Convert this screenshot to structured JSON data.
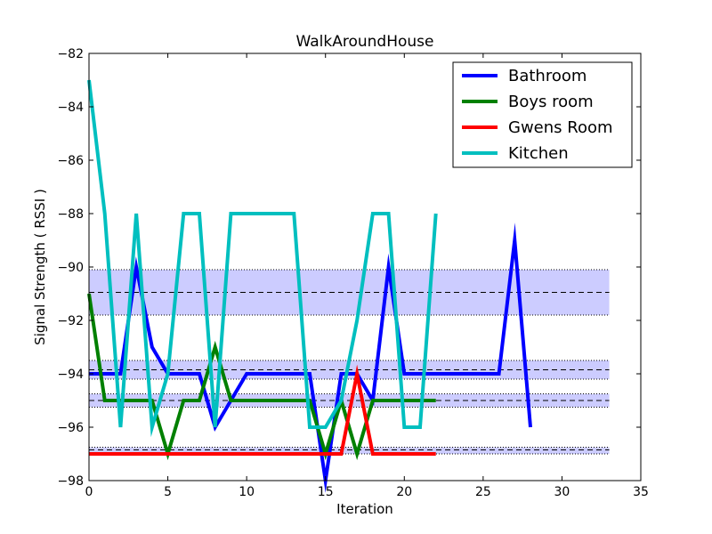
{
  "chart_data": {
    "type": "line",
    "title": "WalkAroundHouse",
    "xlabel": "Iteration",
    "ylabel": "Signal Strength  ( RSSI )",
    "xlim": [
      0,
      35
    ],
    "ylim": [
      -98,
      -82
    ],
    "x_ticks": [
      0,
      5,
      10,
      15,
      20,
      25,
      30,
      35
    ],
    "y_ticks": [
      -98,
      -96,
      -94,
      -92,
      -90,
      -88,
      -86,
      -84,
      -82
    ],
    "grid": false,
    "legend_position": "top-right",
    "bands": [
      {
        "mean": -90.95,
        "low": -91.8,
        "high": -90.1,
        "x_end": 33,
        "color": "#ccccff"
      },
      {
        "mean": -93.85,
        "low": -94.2,
        "high": -93.5,
        "x_end": 33,
        "color": "#ccccff"
      },
      {
        "mean": -95.0,
        "low": -95.25,
        "high": -94.75,
        "x_end": 33,
        "color": "#ccccff"
      },
      {
        "mean": -96.85,
        "low": -97.0,
        "high": -96.75,
        "x_end": 33,
        "color": "#ccccff"
      }
    ],
    "series": [
      {
        "name": "Bathroom",
        "color": "#0000ff",
        "x": [
          0,
          1,
          2,
          3,
          4,
          5,
          6,
          7,
          8,
          9,
          10,
          11,
          12,
          13,
          14,
          15,
          16,
          17,
          18,
          19,
          20,
          21,
          22,
          23,
          24,
          25,
          26,
          27,
          28
        ],
        "values": [
          -94,
          -94,
          -94,
          -90,
          -93,
          -94,
          -94,
          -94,
          -96,
          -95,
          -94,
          -94,
          -94,
          -94,
          -94,
          -98,
          -94,
          -94,
          -95,
          -90,
          -94,
          -94,
          -94,
          -94,
          -94,
          -94,
          -94,
          -89,
          -96
        ]
      },
      {
        "name": "Boys room",
        "color": "#008000",
        "x": [
          0,
          1,
          2,
          3,
          4,
          5,
          6,
          7,
          8,
          9,
          10,
          11,
          12,
          13,
          14,
          15,
          16,
          17,
          18,
          19,
          20,
          21,
          22
        ],
        "values": [
          -91,
          -95,
          -95,
          -95,
          -95,
          -97,
          -95,
          -95,
          -93,
          -95,
          -95,
          -95,
          -95,
          -95,
          -95,
          -97,
          -95,
          -97,
          -95,
          -95,
          -95,
          -95,
          -95
        ]
      },
      {
        "name": "Gwens Room",
        "color": "#ff0000",
        "x": [
          0,
          1,
          2,
          3,
          4,
          5,
          6,
          7,
          8,
          9,
          10,
          11,
          12,
          13,
          14,
          15,
          16,
          17,
          18,
          19,
          20,
          21,
          22
        ],
        "values": [
          -97,
          -97,
          -97,
          -97,
          -97,
          -97,
          -97,
          -97,
          -97,
          -97,
          -97,
          -97,
          -97,
          -97,
          -97,
          -97,
          -97,
          -94,
          -97,
          -97,
          -97,
          -97,
          -97
        ]
      },
      {
        "name": "Kitchen",
        "color": "#00bfbf",
        "x": [
          0,
          1,
          2,
          3,
          4,
          5,
          6,
          7,
          8,
          9,
          10,
          11,
          12,
          13,
          14,
          15,
          16,
          17,
          18,
          19,
          20,
          21,
          22
        ],
        "values": [
          -83,
          -88,
          -96,
          -88,
          -96,
          -94,
          -88,
          -88,
          -96,
          -88,
          -88,
          -88,
          -88,
          -88,
          -96,
          -96,
          -95,
          -92,
          -88,
          -88,
          -96,
          -96,
          -88
        ]
      }
    ]
  }
}
